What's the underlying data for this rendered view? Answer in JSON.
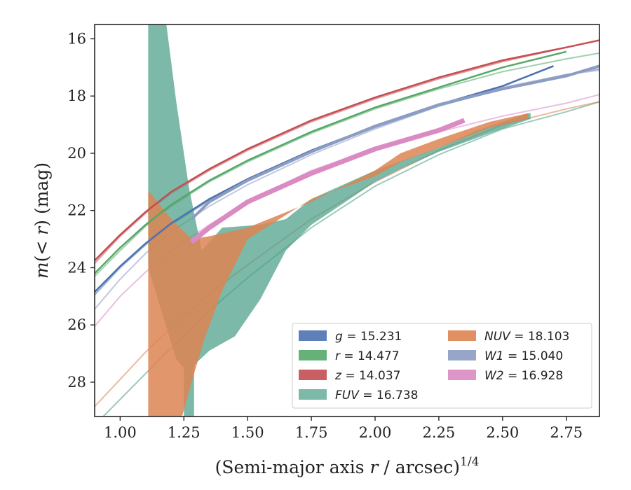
{
  "chart_data": {
    "type": "area",
    "xlabel": "(Semi-major axis r / arcsec)",
    "xlabel_parts": {
      "pre": "(Semi-major axis ",
      "var": "r",
      "post": " / arcsec)",
      "sup": "1/4"
    },
    "ylabel": "m(<r) (mag)",
    "ylabel_parts": {
      "var": "m",
      "mid": "(< ",
      "var2": "r",
      "post": ") (mag)"
    },
    "xlim": [
      0.9,
      2.88
    ],
    "ylim": [
      29.2,
      15.5
    ],
    "y_inverted": true,
    "xticks": [
      1.0,
      1.25,
      1.5,
      1.75,
      2.0,
      2.25,
      2.5,
      2.75
    ],
    "xtick_labels": [
      "1.00",
      "1.25",
      "1.50",
      "1.75",
      "2.00",
      "2.25",
      "2.50",
      "2.75"
    ],
    "yticks": [
      16,
      18,
      20,
      22,
      24,
      26,
      28
    ],
    "ytick_labels": [
      "16",
      "18",
      "20",
      "22",
      "24",
      "26",
      "28"
    ],
    "grid": false,
    "legend_placement": "lower-right",
    "series": [
      {
        "key": "g",
        "name": "g = 15.231",
        "legend_var": "g",
        "legend_value": "= 15.231",
        "color": "#4c72b0",
        "kind": "curve",
        "faint": [
          [
            0.9,
            24.95
          ],
          [
            1.0,
            24.0
          ],
          [
            1.1,
            23.2
          ],
          [
            1.2,
            22.5
          ],
          [
            1.35,
            21.65
          ],
          [
            1.5,
            20.95
          ],
          [
            1.75,
            19.95
          ],
          [
            2.0,
            19.1
          ],
          [
            2.25,
            18.35
          ],
          [
            2.5,
            17.75
          ],
          [
            2.75,
            17.25
          ],
          [
            2.88,
            17.05
          ]
        ],
        "strong": [
          [
            0.9,
            24.85
          ],
          [
            1.0,
            23.95
          ],
          [
            1.1,
            23.15
          ],
          [
            1.2,
            22.45
          ],
          [
            1.35,
            21.6
          ],
          [
            1.5,
            20.9
          ],
          [
            1.75,
            19.9
          ],
          [
            2.0,
            19.05
          ],
          [
            2.25,
            18.3
          ],
          [
            2.5,
            17.65
          ],
          [
            2.7,
            16.95
          ]
        ]
      },
      {
        "key": "r",
        "name": "r = 14.477",
        "legend_var": "r",
        "legend_value": "= 14.477",
        "color": "#55a868",
        "kind": "curve",
        "faint": [
          [
            0.9,
            24.3
          ],
          [
            1.0,
            23.4
          ],
          [
            1.1,
            22.55
          ],
          [
            1.2,
            21.85
          ],
          [
            1.35,
            21.0
          ],
          [
            1.5,
            20.3
          ],
          [
            1.75,
            19.3
          ],
          [
            2.0,
            18.45
          ],
          [
            2.25,
            17.75
          ],
          [
            2.5,
            17.15
          ],
          [
            2.75,
            16.7
          ],
          [
            2.88,
            16.5
          ]
        ],
        "strong": [
          [
            0.9,
            24.2
          ],
          [
            1.0,
            23.3
          ],
          [
            1.1,
            22.5
          ],
          [
            1.2,
            21.8
          ],
          [
            1.35,
            20.95
          ],
          [
            1.5,
            20.25
          ],
          [
            1.75,
            19.25
          ],
          [
            2.0,
            18.4
          ],
          [
            2.25,
            17.7
          ],
          [
            2.5,
            17.0
          ],
          [
            2.75,
            16.45
          ]
        ]
      },
      {
        "key": "z",
        "name": "z = 14.037",
        "legend_var": "z",
        "legend_value": "= 14.037",
        "color": "#c44e52",
        "kind": "curve",
        "faint": [
          [
            0.9,
            23.85
          ],
          [
            1.0,
            22.9
          ],
          [
            1.1,
            22.1
          ],
          [
            1.2,
            21.4
          ],
          [
            1.35,
            20.6
          ],
          [
            1.5,
            19.9
          ],
          [
            1.75,
            18.9
          ],
          [
            2.0,
            18.1
          ],
          [
            2.25,
            17.4
          ],
          [
            2.5,
            16.8
          ],
          [
            2.75,
            16.3
          ],
          [
            2.88,
            16.05
          ]
        ],
        "strong": [
          [
            0.9,
            23.75
          ],
          [
            1.0,
            22.85
          ],
          [
            1.1,
            22.05
          ],
          [
            1.2,
            21.35
          ],
          [
            1.35,
            20.55
          ],
          [
            1.5,
            19.85
          ],
          [
            1.75,
            18.85
          ],
          [
            2.0,
            18.05
          ],
          [
            2.25,
            17.35
          ],
          [
            2.5,
            16.75
          ],
          [
            2.75,
            16.3
          ],
          [
            2.88,
            16.05
          ]
        ]
      },
      {
        "key": "FUV",
        "name": "FUV = 16.738",
        "legend_var": "FUV",
        "legend_value": "= 16.738",
        "color": "#4a9e86",
        "kind": "band",
        "faint": [
          [
            0.9,
            29.5
          ],
          [
            1.0,
            28.6
          ],
          [
            1.1,
            27.7
          ],
          [
            1.2,
            26.8
          ],
          [
            1.35,
            25.5
          ],
          [
            1.5,
            24.35
          ],
          [
            1.75,
            22.6
          ],
          [
            2.0,
            21.15
          ],
          [
            2.25,
            20.05
          ],
          [
            2.5,
            19.15
          ],
          [
            2.75,
            18.55
          ],
          [
            2.88,
            18.2
          ]
        ],
        "band_upper": [
          [
            1.11,
            15.4
          ],
          [
            1.18,
            15.4
          ],
          [
            1.22,
            18.2
          ],
          [
            1.27,
            21.2
          ],
          [
            1.32,
            23.4
          ],
          [
            1.4,
            22.6
          ],
          [
            1.55,
            22.5
          ],
          [
            1.65,
            22.3
          ],
          [
            1.75,
            21.6
          ],
          [
            2.0,
            20.6
          ],
          [
            2.25,
            19.8
          ],
          [
            2.4,
            19.2
          ],
          [
            2.6,
            18.6
          ],
          [
            2.61,
            18.6
          ]
        ],
        "band_lower": [
          [
            2.61,
            18.8
          ],
          [
            2.45,
            19.3
          ],
          [
            2.25,
            19.95
          ],
          [
            2.1,
            20.55
          ],
          [
            2.0,
            21.0
          ],
          [
            1.75,
            22.5
          ],
          [
            1.65,
            23.4
          ],
          [
            1.55,
            25.1
          ],
          [
            1.45,
            26.4
          ],
          [
            1.35,
            26.9
          ],
          [
            1.29,
            27.4
          ],
          [
            1.29,
            29.3
          ],
          [
            1.25,
            29.3
          ],
          [
            1.25,
            27.5
          ],
          [
            1.22,
            27.2
          ],
          [
            1.11,
            24.0
          ]
        ]
      },
      {
        "key": "NUV",
        "name": "NUV = 18.103",
        "legend_var": "NUV",
        "legend_value": "= 18.103",
        "color": "#dd8452",
        "kind": "band",
        "faint": [
          [
            0.9,
            28.85
          ],
          [
            1.0,
            27.9
          ],
          [
            1.1,
            26.95
          ],
          [
            1.2,
            26.1
          ],
          [
            1.35,
            24.9
          ],
          [
            1.5,
            23.9
          ],
          [
            1.75,
            22.3
          ],
          [
            2.0,
            21.0
          ],
          [
            2.25,
            19.9
          ],
          [
            2.5,
            19.0
          ],
          [
            2.75,
            18.45
          ],
          [
            2.88,
            18.2
          ]
        ],
        "band_upper": [
          [
            1.11,
            21.3
          ],
          [
            1.2,
            22.3
          ],
          [
            1.28,
            23.0
          ],
          [
            1.35,
            22.9
          ],
          [
            1.5,
            22.6
          ],
          [
            1.75,
            21.7
          ],
          [
            2.0,
            20.6
          ],
          [
            2.1,
            20.0
          ],
          [
            2.25,
            19.5
          ],
          [
            2.45,
            18.9
          ],
          [
            2.6,
            18.6
          ]
        ],
        "band_lower": [
          [
            2.6,
            18.8
          ],
          [
            2.45,
            19.1
          ],
          [
            2.25,
            19.8
          ],
          [
            2.1,
            20.3
          ],
          [
            2.0,
            20.8
          ],
          [
            1.75,
            21.6
          ],
          [
            1.5,
            23.0
          ],
          [
            1.4,
            24.8
          ],
          [
            1.33,
            26.5
          ],
          [
            1.28,
            28.0
          ],
          [
            1.24,
            29.3
          ],
          [
            1.11,
            29.3
          ]
        ]
      },
      {
        "key": "W1",
        "name": "W1 = 15.040",
        "legend_var": "W1",
        "legend_value": "= 15.040",
        "color": "#8c9cc2",
        "kind": "curve",
        "faint": [
          [
            0.9,
            25.45
          ],
          [
            1.0,
            24.4
          ],
          [
            1.1,
            23.5
          ],
          [
            1.2,
            22.75
          ],
          [
            1.35,
            21.85
          ],
          [
            1.5,
            21.1
          ],
          [
            1.75,
            20.05
          ],
          [
            2.0,
            19.15
          ],
          [
            2.25,
            18.35
          ],
          [
            2.5,
            17.7
          ],
          [
            2.75,
            17.25
          ],
          [
            2.88,
            17.1
          ]
        ],
        "strong": [
          [
            1.28,
            22.3
          ],
          [
            1.35,
            21.7
          ],
          [
            1.5,
            20.95
          ],
          [
            1.75,
            19.95
          ],
          [
            2.0,
            19.05
          ],
          [
            2.25,
            18.3
          ],
          [
            2.5,
            17.75
          ],
          [
            2.75,
            17.3
          ],
          [
            2.88,
            16.95
          ]
        ]
      },
      {
        "key": "W2",
        "name": "W2 = 16.928",
        "legend_var": "W2",
        "legend_value": "= 16.928",
        "color": "#da8bc3",
        "kind": "thick",
        "faint": [
          [
            0.9,
            26.05
          ],
          [
            1.0,
            25.0
          ],
          [
            1.1,
            24.15
          ],
          [
            1.2,
            23.4
          ],
          [
            1.35,
            22.5
          ],
          [
            1.5,
            21.7
          ],
          [
            1.75,
            20.6
          ],
          [
            2.0,
            19.85
          ],
          [
            2.25,
            19.25
          ],
          [
            2.5,
            18.7
          ],
          [
            2.75,
            18.25
          ],
          [
            2.88,
            17.95
          ]
        ],
        "strong": [
          [
            1.28,
            23.1
          ],
          [
            1.35,
            22.6
          ],
          [
            1.5,
            21.7
          ],
          [
            1.75,
            20.7
          ],
          [
            2.0,
            19.85
          ],
          [
            2.25,
            19.2
          ],
          [
            2.35,
            18.85
          ]
        ]
      }
    ]
  }
}
